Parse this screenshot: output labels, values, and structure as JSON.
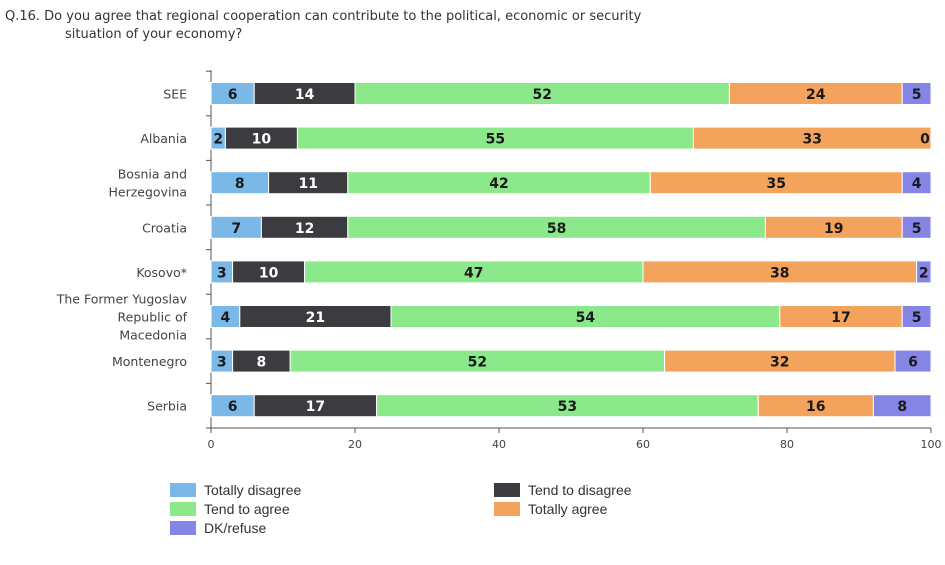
{
  "chart_data": {
    "type": "bar",
    "orientation": "horizontal",
    "stacked": true,
    "title_line1": "Q.16. Do you agree that regional cooperation can contribute to the political, economic or security",
    "title_line2": "situation of your economy?",
    "categories": [
      [
        "SEE"
      ],
      [
        "Albania"
      ],
      [
        "Bosnia and",
        "Herzegovina"
      ],
      [
        "Croatia"
      ],
      [
        "Kosovo*"
      ],
      [
        "The Former Yugoslav",
        "Republic of",
        "Macedonia"
      ],
      [
        "Montenegro"
      ],
      [
        "Serbia"
      ]
    ],
    "series": [
      {
        "name": "Totally disagree",
        "color": "#7ab8e8",
        "values": [
          6,
          2,
          8,
          7,
          3,
          4,
          3,
          6
        ]
      },
      {
        "name": "Tend to disagree",
        "color": "#3c3c40",
        "values": [
          14,
          10,
          11,
          12,
          10,
          21,
          8,
          17
        ]
      },
      {
        "name": "Tend to agree",
        "color": "#8be88b",
        "values": [
          52,
          55,
          42,
          58,
          47,
          54,
          52,
          53
        ]
      },
      {
        "name": "Totally agree",
        "color": "#f4a35c",
        "values": [
          24,
          33,
          35,
          19,
          38,
          17,
          32,
          16
        ]
      },
      {
        "name": "DK/refuse",
        "color": "#8585e6",
        "values": [
          5,
          0,
          4,
          5,
          2,
          5,
          6,
          8
        ]
      }
    ],
    "xlim": [
      0,
      100
    ],
    "xticks": [
      0,
      20,
      40,
      60,
      80,
      100
    ],
    "legend_position": "bottom"
  }
}
